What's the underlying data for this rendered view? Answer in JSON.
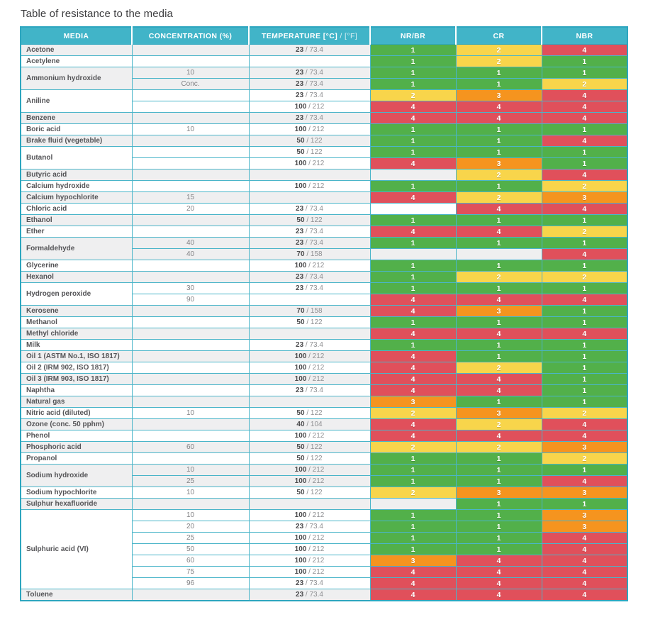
{
  "page": {
    "title": "Table of resistance to the media"
  },
  "colors": {
    "header_bg": "#41b4c8",
    "border_teal": "#2ea6bf",
    "row_alt_bg": "#efeff0",
    "rating": {
      "1": "#52b04a",
      "2": "#f8d54b",
      "3": "#f5941f",
      "4": "#e0505b"
    }
  },
  "table": {
    "columns": {
      "media": "MEDIA",
      "concentration": "CONCENTRATION (%)",
      "temperature_c": "TEMPERATURE [°C]",
      "temperature_f": " / [°F]",
      "nr_br": "NR/BR",
      "cr": "CR",
      "nbr": "NBR"
    },
    "rating_colors": {
      "1": "#52b04a",
      "2": "#f8d54b",
      "3": "#f5941f",
      "4": "#e0505b"
    },
    "groups": [
      {
        "media": "Acetone",
        "rows": [
          {
            "concentration": "",
            "temp_c": "23",
            "temp_f": "73.4",
            "ratings": [
              "1",
              "2",
              "4"
            ]
          }
        ]
      },
      {
        "media": "Acetylene",
        "rows": [
          {
            "concentration": "",
            "temp_c": "",
            "temp_f": "",
            "ratings": [
              "1",
              "2",
              "1"
            ]
          }
        ]
      },
      {
        "media": "Ammonium hydroxide",
        "rows": [
          {
            "concentration": "10",
            "temp_c": "23",
            "temp_f": "73.4",
            "ratings": [
              "1",
              "1",
              "1"
            ]
          },
          {
            "concentration": "Conc.",
            "temp_c": "23",
            "temp_f": "73.4",
            "ratings": [
              "1",
              "1",
              "2"
            ]
          }
        ]
      },
      {
        "media": "Aniline",
        "rows": [
          {
            "concentration": "",
            "temp_c": "23",
            "temp_f": "73.4",
            "ratings": [
              "2",
              "3",
              "4"
            ]
          },
          {
            "concentration": "",
            "temp_c": "100",
            "temp_f": "212",
            "ratings": [
              "4",
              "4",
              "4"
            ]
          }
        ]
      },
      {
        "media": "Benzene",
        "rows": [
          {
            "concentration": "",
            "temp_c": "23",
            "temp_f": "73.4",
            "ratings": [
              "4",
              "4",
              "4"
            ]
          }
        ]
      },
      {
        "media": "Boric acid",
        "rows": [
          {
            "concentration": "10",
            "temp_c": "100",
            "temp_f": "212",
            "ratings": [
              "1",
              "1",
              "1"
            ]
          }
        ]
      },
      {
        "media": "Brake fluid (vegetable)",
        "rows": [
          {
            "concentration": "",
            "temp_c": "50",
            "temp_f": "122",
            "ratings": [
              "1",
              "1",
              "4"
            ]
          }
        ]
      },
      {
        "media": "Butanol",
        "rows": [
          {
            "concentration": "",
            "temp_c": "50",
            "temp_f": "122",
            "ratings": [
              "1",
              "1",
              "1"
            ]
          },
          {
            "concentration": "",
            "temp_c": "100",
            "temp_f": "212",
            "ratings": [
              "4",
              "3",
              "1"
            ]
          }
        ]
      },
      {
        "media": "Butyric acid",
        "rows": [
          {
            "concentration": "",
            "temp_c": "",
            "temp_f": "",
            "ratings": [
              "",
              "2",
              "4"
            ]
          }
        ]
      },
      {
        "media": "Calcium hydroxide",
        "rows": [
          {
            "concentration": "",
            "temp_c": "100",
            "temp_f": "212",
            "ratings": [
              "1",
              "1",
              "2"
            ]
          }
        ]
      },
      {
        "media": "Calcium hypochlorite",
        "rows": [
          {
            "concentration": "15",
            "temp_c": "",
            "temp_f": "",
            "ratings": [
              "4",
              "2",
              "3"
            ]
          }
        ]
      },
      {
        "media": "Chloric acid",
        "rows": [
          {
            "concentration": "20",
            "temp_c": "23",
            "temp_f": "73.4",
            "ratings": [
              "",
              "4",
              "4"
            ]
          }
        ]
      },
      {
        "media": "Ethanol",
        "rows": [
          {
            "concentration": "",
            "temp_c": "50",
            "temp_f": "122",
            "ratings": [
              "1",
              "1",
              "1"
            ]
          }
        ]
      },
      {
        "media": "Ether",
        "rows": [
          {
            "concentration": "",
            "temp_c": "23",
            "temp_f": "73.4",
            "ratings": [
              "4",
              "4",
              "2"
            ]
          }
        ]
      },
      {
        "media": "Formaldehyde",
        "rows": [
          {
            "concentration": "40",
            "temp_c": "23",
            "temp_f": "73.4",
            "ratings": [
              "1",
              "1",
              "1"
            ]
          },
          {
            "concentration": "40",
            "temp_c": "70",
            "temp_f": "158",
            "ratings": [
              "",
              "",
              "4"
            ]
          }
        ]
      },
      {
        "media": "Glycerine",
        "rows": [
          {
            "concentration": "",
            "temp_c": "100",
            "temp_f": "212",
            "ratings": [
              "1",
              "1",
              "1"
            ]
          }
        ]
      },
      {
        "media": "Hexanol",
        "rows": [
          {
            "concentration": "",
            "temp_c": "23",
            "temp_f": "73.4",
            "ratings": [
              "1",
              "2",
              "2"
            ]
          }
        ]
      },
      {
        "media": "Hydrogen peroxide",
        "rows": [
          {
            "concentration": "30",
            "temp_c": "23",
            "temp_f": "73.4",
            "ratings": [
              "1",
              "1",
              "1"
            ]
          },
          {
            "concentration": "90",
            "temp_c": "",
            "temp_f": "",
            "ratings": [
              "4",
              "4",
              "4"
            ]
          }
        ]
      },
      {
        "media": "Kerosene",
        "rows": [
          {
            "concentration": "",
            "temp_c": "70",
            "temp_f": "158",
            "ratings": [
              "4",
              "3",
              "1"
            ]
          }
        ]
      },
      {
        "media": "Methanol",
        "rows": [
          {
            "concentration": "",
            "temp_c": "50",
            "temp_f": "122",
            "ratings": [
              "1",
              "1",
              "1"
            ]
          }
        ]
      },
      {
        "media": "Methyl chloride",
        "rows": [
          {
            "concentration": "",
            "temp_c": "",
            "temp_f": "",
            "ratings": [
              "4",
              "4",
              "4"
            ]
          }
        ]
      },
      {
        "media": "Milk",
        "rows": [
          {
            "concentration": "",
            "temp_c": "23",
            "temp_f": "73.4",
            "ratings": [
              "1",
              "1",
              "1"
            ]
          }
        ]
      },
      {
        "media": "Oil 1 (ASTM No.1, ISO 1817)",
        "rows": [
          {
            "concentration": "",
            "temp_c": "100",
            "temp_f": "212",
            "ratings": [
              "4",
              "1",
              "1"
            ]
          }
        ]
      },
      {
        "media": "Oil 2 (IRM 902, ISO 1817)",
        "rows": [
          {
            "concentration": "",
            "temp_c": "100",
            "temp_f": "212",
            "ratings": [
              "4",
              "2",
              "1"
            ]
          }
        ]
      },
      {
        "media": "Oil 3 (IRM 903, ISO 1817)",
        "rows": [
          {
            "concentration": "",
            "temp_c": "100",
            "temp_f": "212",
            "ratings": [
              "4",
              "4",
              "1"
            ]
          }
        ]
      },
      {
        "media": "Naphtha",
        "rows": [
          {
            "concentration": "",
            "temp_c": "23",
            "temp_f": "73.4",
            "ratings": [
              "4",
              "4",
              "1"
            ]
          }
        ]
      },
      {
        "media": "Natural gas",
        "rows": [
          {
            "concentration": "",
            "temp_c": "",
            "temp_f": "",
            "ratings": [
              "3",
              "1",
              "1"
            ]
          }
        ]
      },
      {
        "media": "Nitric acid (diluted)",
        "rows": [
          {
            "concentration": "10",
            "temp_c": "50",
            "temp_f": "122",
            "ratings": [
              "2",
              "3",
              "2"
            ]
          }
        ]
      },
      {
        "media": "Ozone (conc. 50 pphm)",
        "rows": [
          {
            "concentration": "",
            "temp_c": "40",
            "temp_f": "104",
            "ratings": [
              "4",
              "2",
              "4"
            ]
          }
        ]
      },
      {
        "media": "Phenol",
        "rows": [
          {
            "concentration": "",
            "temp_c": "100",
            "temp_f": "212",
            "ratings": [
              "4",
              "4",
              "4"
            ]
          }
        ]
      },
      {
        "media": "Phosphoric acid",
        "rows": [
          {
            "concentration": "60",
            "temp_c": "50",
            "temp_f": "122",
            "ratings": [
              "2",
              "2",
              "3"
            ]
          }
        ]
      },
      {
        "media": "Propanol",
        "rows": [
          {
            "concentration": "",
            "temp_c": "50",
            "temp_f": "122",
            "ratings": [
              "1",
              "1",
              "2"
            ]
          }
        ]
      },
      {
        "media": "Sodium hydroxide",
        "rows": [
          {
            "concentration": "10",
            "temp_c": "100",
            "temp_f": "212",
            "ratings": [
              "1",
              "1",
              "1"
            ]
          },
          {
            "concentration": "25",
            "temp_c": "100",
            "temp_f": "212",
            "ratings": [
              "1",
              "1",
              "4"
            ]
          }
        ]
      },
      {
        "media": "Sodium hypochlorite",
        "rows": [
          {
            "concentration": "10",
            "temp_c": "50",
            "temp_f": "122",
            "ratings": [
              "2",
              "3",
              "3"
            ]
          }
        ]
      },
      {
        "media": "Sulphur hexafluoride",
        "rows": [
          {
            "concentration": "",
            "temp_c": "",
            "temp_f": "",
            "ratings": [
              "",
              "1",
              "1"
            ]
          }
        ]
      },
      {
        "media": "Sulphuric acid (VI)",
        "rows": [
          {
            "concentration": "10",
            "temp_c": "100",
            "temp_f": "212",
            "ratings": [
              "1",
              "1",
              "3"
            ]
          },
          {
            "concentration": "20",
            "temp_c": "23",
            "temp_f": "73.4",
            "ratings": [
              "1",
              "1",
              "3"
            ]
          },
          {
            "concentration": "25",
            "temp_c": "100",
            "temp_f": "212",
            "ratings": [
              "1",
              "1",
              "4"
            ]
          },
          {
            "concentration": "50",
            "temp_c": "100",
            "temp_f": "212",
            "ratings": [
              "1",
              "1",
              "4"
            ]
          },
          {
            "concentration": "60",
            "temp_c": "100",
            "temp_f": "212",
            "ratings": [
              "3",
              "4",
              "4"
            ]
          },
          {
            "concentration": "75",
            "temp_c": "100",
            "temp_f": "212",
            "ratings": [
              "4",
              "4",
              "4"
            ]
          },
          {
            "concentration": "96",
            "temp_c": "23",
            "temp_f": "73.4",
            "ratings": [
              "4",
              "4",
              "4"
            ]
          }
        ]
      },
      {
        "media": "Toluene",
        "rows": [
          {
            "concentration": "",
            "temp_c": "23",
            "temp_f": "73.4",
            "ratings": [
              "4",
              "4",
              "4"
            ]
          }
        ]
      }
    ]
  }
}
